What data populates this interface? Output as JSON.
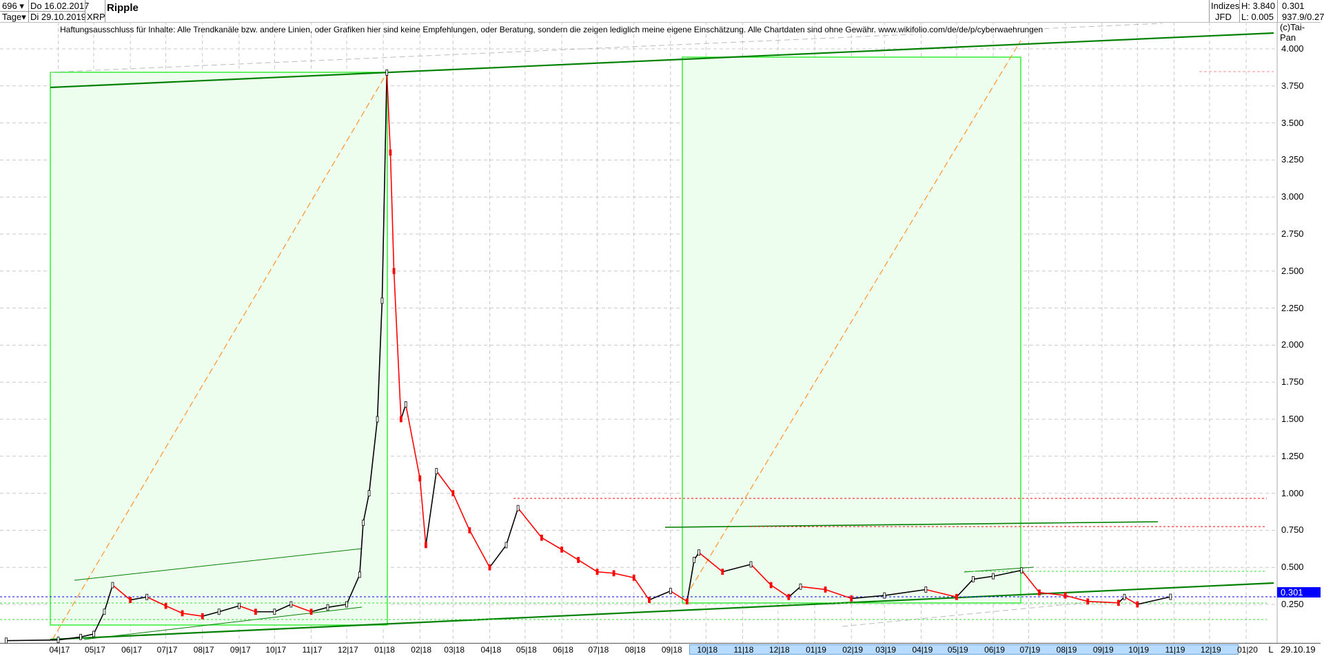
{
  "header": {
    "bars_count": "696",
    "period": "Tage",
    "start_date": "Do 16.02.2017",
    "end_date": "Di 29.10.2019",
    "symbol": "XRP",
    "title": "Ripple",
    "market": "Indizes",
    "source": "JFD",
    "high": "H: 3.840",
    "low": "L: 0.005",
    "last": "0.301",
    "extra": "937.9/0.27"
  },
  "disclaimer": "Haftungsausschluss für Inhalte: Alle Trendkanäle bzw. andere Linien, oder Grafiken hier sind keine Empfehlungen, oder Beratung, sondern die zeigen lediglich meine eigene Einschätzung. Alle Chartdaten sind ohne Gewähr.  www.wikifolio.com/de/de/p/cyberwaehrungen",
  "copyright": "(c)Tai-Pan",
  "footer": {
    "l_button": "L",
    "last_date": "29.10.19"
  },
  "colors": {
    "up": "#000000",
    "down": "#ff0000",
    "channel": "#008000",
    "box_fill": "#eefeee",
    "box_border": "#33ee33",
    "fib": "#ff9933",
    "price_line": "#0000ff"
  },
  "chart_data": {
    "type": "line",
    "title": "Ripple",
    "xlabel": "",
    "ylabel": "",
    "ylim": [
      0,
      4.1
    ],
    "grid": true,
    "y_ticks": [
      "4.000",
      "3.750",
      "3.500",
      "3.250",
      "3.000",
      "2.750",
      "2.500",
      "2.250",
      "2.000",
      "1.750",
      "1.500",
      "1.250",
      "1.000",
      "0.750",
      "0.500",
      "0.250"
    ],
    "x_ticks": [
      "04|17",
      "05|17",
      "06|17",
      "07|17",
      "08|17",
      "09|17",
      "10|17",
      "11|17",
      "12|17",
      "01|18",
      "02|18",
      "03|18",
      "04|18",
      "05|18",
      "06|18",
      "07|18",
      "08|18",
      "09|18",
      "10|18",
      "11|18",
      "12|18",
      "01|19",
      "02|19",
      "03|19",
      "04|19",
      "05|19",
      "06|19",
      "07|19",
      "08|19",
      "09|19",
      "10|19",
      "11|19",
      "12|19",
      "01|20"
    ],
    "last_price": 0.301,
    "x": [
      "2017-02-16",
      "2017-04-01",
      "2017-04-20",
      "2017-05-01",
      "2017-05-10",
      "2017-05-17",
      "2017-06-01",
      "2017-06-15",
      "2017-07-01",
      "2017-07-15",
      "2017-08-01",
      "2017-08-15",
      "2017-09-01",
      "2017-09-15",
      "2017-10-01",
      "2017-10-15",
      "2017-11-01",
      "2017-11-15",
      "2017-12-01",
      "2017-12-12",
      "2017-12-15",
      "2017-12-20",
      "2017-12-27",
      "2017-12-31",
      "2018-01-04",
      "2018-01-07",
      "2018-01-10",
      "2018-01-16",
      "2018-01-20",
      "2018-02-01",
      "2018-02-06",
      "2018-02-15",
      "2018-03-01",
      "2018-03-15",
      "2018-04-01",
      "2018-04-15",
      "2018-04-25",
      "2018-05-15",
      "2018-06-01",
      "2018-06-15",
      "2018-07-01",
      "2018-07-15",
      "2018-08-01",
      "2018-08-14",
      "2018-09-01",
      "2018-09-15",
      "2018-09-21",
      "2018-09-25",
      "2018-10-15",
      "2018-11-08",
      "2018-11-25",
      "2018-12-10",
      "2018-12-20",
      "2019-01-10",
      "2019-02-01",
      "2019-03-01",
      "2019-04-05",
      "2019-05-01",
      "2019-05-15",
      "2019-06-01",
      "2019-06-25",
      "2019-07-10",
      "2019-08-01",
      "2019-08-20",
      "2019-09-15",
      "2019-09-20",
      "2019-10-01",
      "2019-10-29"
    ],
    "series": [
      {
        "values": [
          0.005,
          0.01,
          0.03,
          0.05,
          0.2,
          0.38,
          0.28,
          0.3,
          0.24,
          0.19,
          0.17,
          0.2,
          0.24,
          0.2,
          0.2,
          0.25,
          0.2,
          0.23,
          0.25,
          0.45,
          0.8,
          1.0,
          1.5,
          2.3,
          3.84,
          3.3,
          2.5,
          1.5,
          1.6,
          1.1,
          0.65,
          1.15,
          1.0,
          0.75,
          0.5,
          0.65,
          0.9,
          0.7,
          0.62,
          0.55,
          0.47,
          0.46,
          0.43,
          0.28,
          0.34,
          0.27,
          0.55,
          0.6,
          0.47,
          0.52,
          0.38,
          0.3,
          0.37,
          0.35,
          0.29,
          0.31,
          0.35,
          0.3,
          0.42,
          0.44,
          0.48,
          0.33,
          0.31,
          0.27,
          0.26,
          0.3,
          0.25,
          0.301
        ]
      }
    ]
  }
}
